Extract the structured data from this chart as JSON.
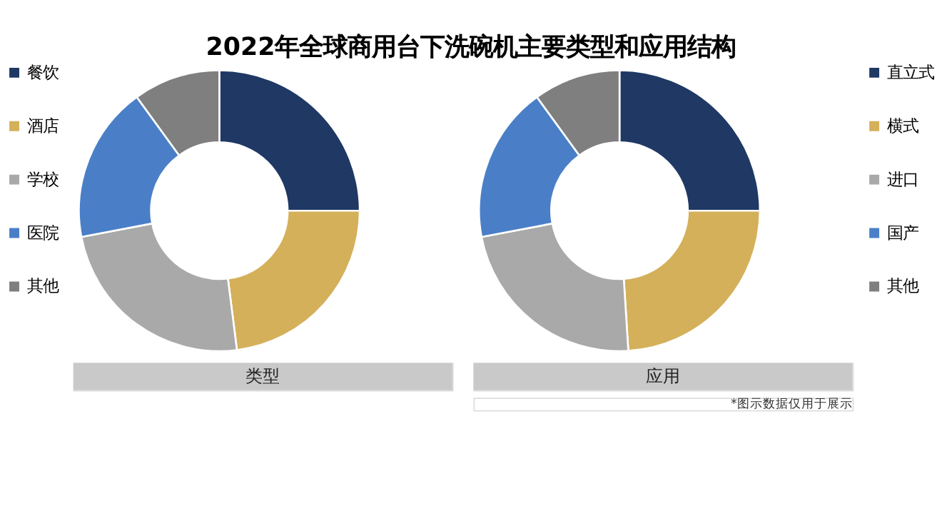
{
  "chart_data": [
    {
      "type": "donut",
      "title": "2022年全球商用台下洗碗机主要类型和应用结构",
      "xlabel": "类型",
      "legend": "left",
      "categories": [
        "餐饮",
        "酒店",
        "学校",
        "医院",
        "其他"
      ],
      "values": [
        25,
        23,
        24,
        18,
        10
      ],
      "colors": [
        "#1f3864",
        "#d4b05a",
        "#a9a9a9",
        "#4a7fc8",
        "#7f7f7f"
      ]
    },
    {
      "type": "donut",
      "xlabel": "应用",
      "legend": "right",
      "categories": [
        "直立式",
        "横式",
        "进口",
        "国产",
        "其他"
      ],
      "values": [
        25,
        24,
        23,
        18,
        10
      ],
      "colors": [
        "#1f3864",
        "#d4b05a",
        "#a9a9a9",
        "#4a7fc8",
        "#7f7f7f"
      ],
      "annotations": [
        "*图示数据仅用于展示"
      ]
    }
  ]
}
